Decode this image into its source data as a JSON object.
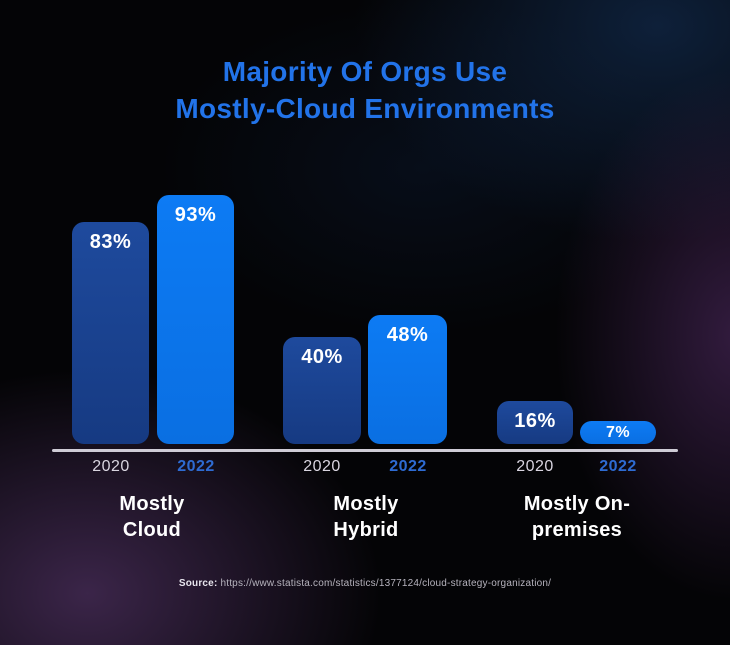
{
  "title": {
    "line1": "Majority Of Orgs Use",
    "line2": "Mostly-Cloud Environments"
  },
  "chart_data": {
    "type": "bar",
    "title": "Majority Of Orgs Use Mostly-Cloud Environments",
    "unit": "%",
    "categories": [
      "Mostly Cloud",
      "Mostly Hybrid",
      "Mostly On-premises"
    ],
    "series": [
      {
        "name": "2020",
        "values": [
          83,
          40,
          16
        ]
      },
      {
        "name": "2022",
        "values": [
          93,
          48,
          7
        ]
      }
    ],
    "ylim": [
      0,
      100
    ],
    "grid": false,
    "legend_position": "years labeled under each bar",
    "colors": {
      "2020": "#1b4292",
      "2022": "#0b74ec"
    }
  },
  "groups": [
    {
      "category_line1": "Mostly",
      "category_line2": "Cloud",
      "bars": [
        {
          "year": "2020",
          "value": 83,
          "label": "83%"
        },
        {
          "year": "2022",
          "value": 93,
          "label": "93%"
        }
      ]
    },
    {
      "category_line1": "Mostly",
      "category_line2": "Hybrid",
      "bars": [
        {
          "year": "2020",
          "value": 40,
          "label": "40%"
        },
        {
          "year": "2022",
          "value": 48,
          "label": "48%"
        }
      ]
    },
    {
      "category_line1": "Mostly On-",
      "category_line2": "premises",
      "bars": [
        {
          "year": "2020",
          "value": 16,
          "label": "16%"
        },
        {
          "year": "2022",
          "value": 7,
          "label": "7%"
        }
      ]
    }
  ],
  "source": {
    "label": "Source:",
    "url": "https://www.statista.com/statistics/1377124/cloud-strategy-organization/"
  },
  "colors": {
    "background": "#040406",
    "title_text": "#2273e9",
    "bar_2020": "#1b4292",
    "bar_2022": "#0b74ec",
    "value_text": "#ffffff",
    "year_2020_text": "#d9d5e0",
    "year_2022_text": "#2e6bd2",
    "category_text": "#ffffff",
    "axis_line": "#cfccd6",
    "glow_purple": "#684080",
    "glow_navy": "#163764"
  }
}
